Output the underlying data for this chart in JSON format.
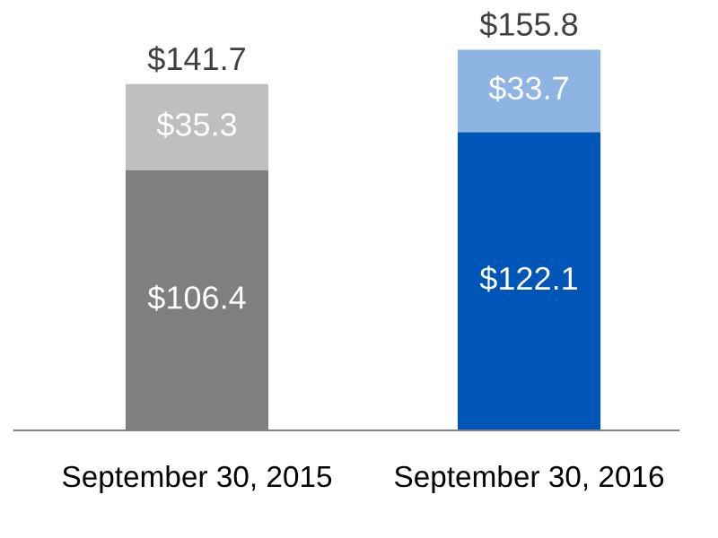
{
  "chart_data": {
    "type": "bar",
    "stacked": true,
    "categories": [
      "September 30, 2015",
      "September 30, 2016"
    ],
    "series": [
      {
        "colors": [
          "#7f7f7f",
          "#0055b8"
        ],
        "values": [
          106.4,
          122.1
        ],
        "value_labels": [
          "$106.4",
          "$122.1"
        ]
      },
      {
        "colors": [
          "#bfbfbf",
          "#8db4e2"
        ],
        "values": [
          35.3,
          33.7
        ],
        "value_labels": [
          "$35.3",
          "$33.7"
        ]
      }
    ],
    "totals": [
      "$141.7",
      "$155.8"
    ],
    "tick_labels": "x",
    "grid": false,
    "legend": false
  }
}
